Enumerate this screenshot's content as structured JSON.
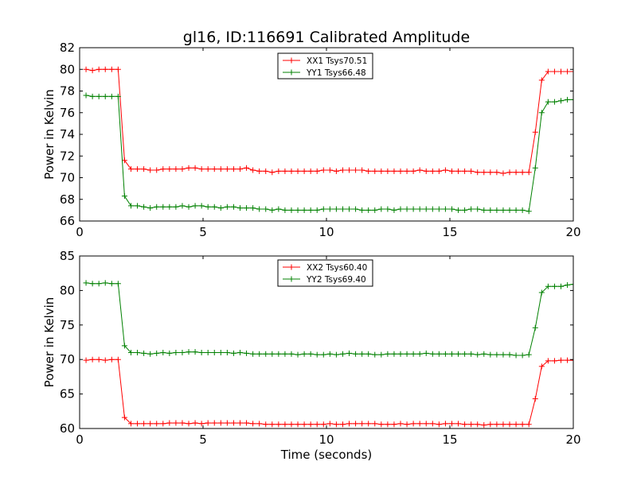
{
  "page": {
    "title": "gl16, ID:116691 Calibrated Amplitude",
    "xlabel": "Time (seconds)",
    "ylabel": "Power in Kelvin"
  },
  "chart_data": [
    {
      "type": "line",
      "title": "gl16, ID:116691 Calibrated Amplitude",
      "xlabel": "",
      "ylabel": "Power in Kelvin",
      "xlim": [
        0,
        20
      ],
      "ylim": [
        66,
        82
      ],
      "xticks": [
        0,
        5,
        10,
        15,
        20
      ],
      "yticks": [
        66,
        68,
        70,
        72,
        74,
        76,
        78,
        80,
        82
      ],
      "grid": false,
      "legend_position": "top-center",
      "x": [
        0.26,
        0.52,
        0.78,
        1.04,
        1.3,
        1.56,
        1.82,
        2.08,
        2.34,
        2.6,
        2.86,
        3.12,
        3.38,
        3.64,
        3.9,
        4.16,
        4.42,
        4.68,
        4.94,
        5.2,
        5.46,
        5.72,
        5.98,
        6.24,
        6.5,
        6.76,
        7.02,
        7.28,
        7.54,
        7.8,
        8.06,
        8.32,
        8.58,
        8.84,
        9.1,
        9.36,
        9.62,
        9.88,
        10.14,
        10.4,
        10.66,
        10.92,
        11.18,
        11.44,
        11.7,
        11.96,
        12.22,
        12.48,
        12.74,
        13.0,
        13.26,
        13.52,
        13.78,
        14.04,
        14.3,
        14.56,
        14.82,
        15.08,
        15.34,
        15.6,
        15.86,
        16.12,
        16.38,
        16.64,
        16.9,
        17.16,
        17.42,
        17.68,
        17.94,
        18.2,
        18.46,
        18.72,
        18.98,
        19.24,
        19.5,
        19.76,
        20.0
      ],
      "series": [
        {
          "name": "XX1 Tsys70.51",
          "color": "#ff0000",
          "values": [
            80.0,
            79.9,
            80.0,
            80.0,
            80.0,
            80.0,
            71.6,
            70.8,
            70.8,
            70.8,
            70.7,
            70.7,
            70.8,
            70.8,
            70.8,
            70.8,
            70.9,
            70.9,
            70.8,
            70.8,
            70.8,
            70.8,
            70.8,
            70.8,
            70.8,
            70.9,
            70.7,
            70.6,
            70.6,
            70.5,
            70.6,
            70.6,
            70.6,
            70.6,
            70.6,
            70.6,
            70.6,
            70.7,
            70.7,
            70.6,
            70.7,
            70.7,
            70.7,
            70.7,
            70.6,
            70.6,
            70.6,
            70.6,
            70.6,
            70.6,
            70.6,
            70.6,
            70.7,
            70.6,
            70.6,
            70.6,
            70.7,
            70.6,
            70.6,
            70.6,
            70.6,
            70.5,
            70.5,
            70.5,
            70.5,
            70.4,
            70.5,
            70.5,
            70.5,
            70.5,
            74.2,
            79.0,
            79.8,
            79.8,
            79.8,
            79.8,
            79.8
          ]
        },
        {
          "name": "YY1 Tsys66.48",
          "color": "#008000",
          "values": [
            77.6,
            77.5,
            77.5,
            77.5,
            77.5,
            77.5,
            68.3,
            67.4,
            67.4,
            67.3,
            67.2,
            67.3,
            67.3,
            67.3,
            67.3,
            67.4,
            67.3,
            67.4,
            67.4,
            67.3,
            67.3,
            67.2,
            67.3,
            67.3,
            67.2,
            67.2,
            67.2,
            67.1,
            67.1,
            67.0,
            67.1,
            67.0,
            67.0,
            67.0,
            67.0,
            67.0,
            67.0,
            67.1,
            67.1,
            67.1,
            67.1,
            67.1,
            67.1,
            67.0,
            67.0,
            67.0,
            67.1,
            67.1,
            67.0,
            67.1,
            67.1,
            67.1,
            67.1,
            67.1,
            67.1,
            67.1,
            67.1,
            67.1,
            67.0,
            67.0,
            67.1,
            67.1,
            67.0,
            67.0,
            67.0,
            67.0,
            67.0,
            67.0,
            67.0,
            66.9,
            70.9,
            76.0,
            77.0,
            77.0,
            77.1,
            77.2,
            77.2
          ]
        }
      ]
    },
    {
      "type": "line",
      "title": "",
      "xlabel": "Time (seconds)",
      "ylabel": "Power in Kelvin",
      "xlim": [
        0,
        20
      ],
      "ylim": [
        60,
        85
      ],
      "xticks": [
        0,
        5,
        10,
        15,
        20
      ],
      "yticks": [
        60,
        65,
        70,
        75,
        80,
        85
      ],
      "grid": false,
      "legend_position": "top-center",
      "x": [
        0.26,
        0.52,
        0.78,
        1.04,
        1.3,
        1.56,
        1.82,
        2.08,
        2.34,
        2.6,
        2.86,
        3.12,
        3.38,
        3.64,
        3.9,
        4.16,
        4.42,
        4.68,
        4.94,
        5.2,
        5.46,
        5.72,
        5.98,
        6.24,
        6.5,
        6.76,
        7.02,
        7.28,
        7.54,
        7.8,
        8.06,
        8.32,
        8.58,
        8.84,
        9.1,
        9.36,
        9.62,
        9.88,
        10.14,
        10.4,
        10.66,
        10.92,
        11.18,
        11.44,
        11.7,
        11.96,
        12.22,
        12.48,
        12.74,
        13.0,
        13.26,
        13.52,
        13.78,
        14.04,
        14.3,
        14.56,
        14.82,
        15.08,
        15.34,
        15.6,
        15.86,
        16.12,
        16.38,
        16.64,
        16.9,
        17.16,
        17.42,
        17.68,
        17.94,
        18.2,
        18.46,
        18.72,
        18.98,
        19.24,
        19.5,
        19.76,
        20.0
      ],
      "series": [
        {
          "name": "XX2 Tsys60.40",
          "color": "#ff0000",
          "values": [
            69.9,
            70.0,
            70.0,
            69.9,
            70.0,
            70.0,
            61.6,
            60.7,
            60.7,
            60.7,
            60.7,
            60.7,
            60.7,
            60.8,
            60.8,
            60.8,
            60.7,
            60.8,
            60.7,
            60.8,
            60.8,
            60.8,
            60.8,
            60.8,
            60.8,
            60.8,
            60.7,
            60.7,
            60.6,
            60.6,
            60.6,
            60.6,
            60.6,
            60.6,
            60.6,
            60.6,
            60.6,
            60.6,
            60.7,
            60.6,
            60.6,
            60.7,
            60.7,
            60.7,
            60.7,
            60.7,
            60.6,
            60.6,
            60.6,
            60.7,
            60.6,
            60.7,
            60.7,
            60.7,
            60.7,
            60.6,
            60.7,
            60.7,
            60.7,
            60.6,
            60.6,
            60.6,
            60.5,
            60.6,
            60.6,
            60.6,
            60.6,
            60.6,
            60.6,
            60.6,
            64.3,
            69.0,
            69.8,
            69.8,
            69.9,
            69.9,
            69.9
          ]
        },
        {
          "name": "YY2 Tsys69.40",
          "color": "#008000",
          "values": [
            81.1,
            81.0,
            81.0,
            81.1,
            81.0,
            81.0,
            72.0,
            71.0,
            71.0,
            70.9,
            70.8,
            70.9,
            71.0,
            70.9,
            71.0,
            71.0,
            71.1,
            71.1,
            71.0,
            71.0,
            71.0,
            71.0,
            71.0,
            70.9,
            71.0,
            70.9,
            70.8,
            70.8,
            70.8,
            70.8,
            70.8,
            70.8,
            70.8,
            70.7,
            70.8,
            70.8,
            70.7,
            70.7,
            70.8,
            70.7,
            70.8,
            70.9,
            70.8,
            70.8,
            70.8,
            70.7,
            70.7,
            70.8,
            70.8,
            70.8,
            70.8,
            70.8,
            70.8,
            70.9,
            70.8,
            70.8,
            70.8,
            70.8,
            70.8,
            70.8,
            70.8,
            70.7,
            70.8,
            70.7,
            70.7,
            70.7,
            70.7,
            70.6,
            70.6,
            70.7,
            74.6,
            79.7,
            80.6,
            80.6,
            80.6,
            80.8,
            80.9
          ]
        }
      ]
    }
  ]
}
